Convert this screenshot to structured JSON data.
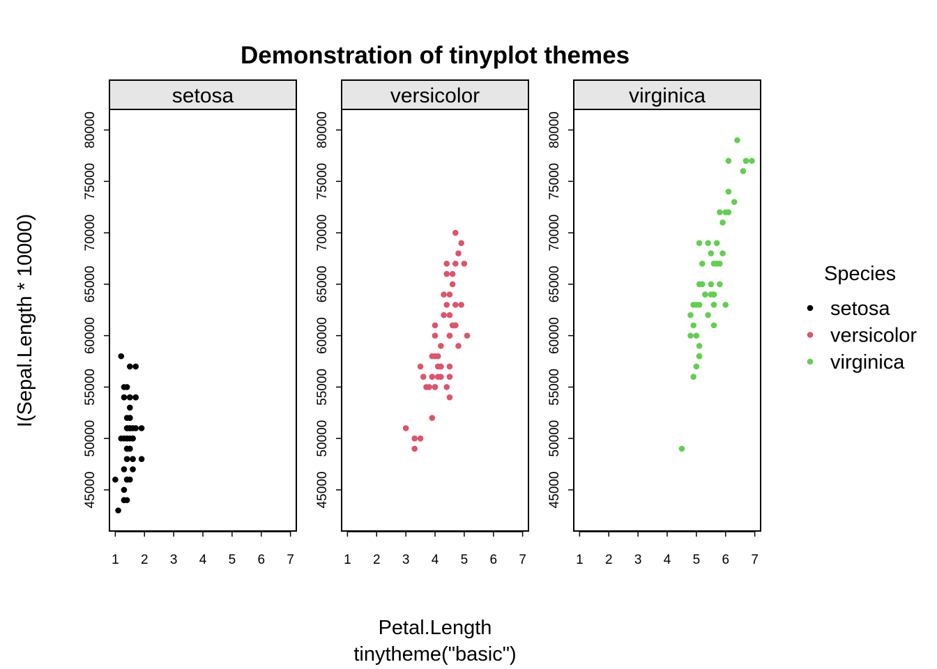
{
  "chart_data": {
    "type": "scatter",
    "title": "Demonstration of tinyplot themes",
    "xlabel": "Petal.Length",
    "sublabel": "tinytheme(\"basic\")",
    "ylabel": "I(Sepal.Length * 10000)",
    "xlim": [
      0.8,
      7.2
    ],
    "ylim": [
      41000,
      82000
    ],
    "x_ticks": [
      "1",
      "2",
      "3",
      "4",
      "5",
      "6",
      "7"
    ],
    "y_ticks": [
      "45000",
      "50000",
      "55000",
      "60000",
      "65000",
      "70000",
      "75000",
      "80000"
    ],
    "legend": {
      "title": "Species",
      "placement": "right"
    },
    "series": [
      {
        "name": "setosa",
        "color": "#000000",
        "points": [
          [
            1.4,
            51000
          ],
          [
            1.4,
            49000
          ],
          [
            1.3,
            47000
          ],
          [
            1.5,
            46000
          ],
          [
            1.4,
            50000
          ],
          [
            1.7,
            54000
          ],
          [
            1.4,
            46000
          ],
          [
            1.5,
            50000
          ],
          [
            1.4,
            44000
          ],
          [
            1.5,
            49000
          ],
          [
            1.5,
            54000
          ],
          [
            1.6,
            48000
          ],
          [
            1.4,
            48000
          ],
          [
            1.1,
            43000
          ],
          [
            1.2,
            58000
          ],
          [
            1.5,
            57000
          ],
          [
            1.3,
            54000
          ],
          [
            1.4,
            51000
          ],
          [
            1.7,
            57000
          ],
          [
            1.5,
            51000
          ],
          [
            1.7,
            54000
          ],
          [
            1.5,
            51000
          ],
          [
            1.0,
            46000
          ],
          [
            1.7,
            51000
          ],
          [
            1.9,
            48000
          ],
          [
            1.6,
            50000
          ],
          [
            1.6,
            50000
          ],
          [
            1.5,
            52000
          ],
          [
            1.4,
            52000
          ],
          [
            1.6,
            47000
          ],
          [
            1.6,
            48000
          ],
          [
            1.5,
            54000
          ],
          [
            1.5,
            52000
          ],
          [
            1.4,
            55000
          ],
          [
            1.5,
            49000
          ],
          [
            1.2,
            50000
          ],
          [
            1.3,
            55000
          ],
          [
            1.4,
            49000
          ],
          [
            1.3,
            44000
          ],
          [
            1.5,
            51000
          ],
          [
            1.3,
            50000
          ],
          [
            1.3,
            45000
          ],
          [
            1.3,
            44000
          ],
          [
            1.6,
            50000
          ],
          [
            1.9,
            51000
          ],
          [
            1.4,
            48000
          ],
          [
            1.6,
            51000
          ],
          [
            1.4,
            46000
          ],
          [
            1.5,
            53000
          ],
          [
            1.4,
            50000
          ]
        ]
      },
      {
        "name": "versicolor",
        "color": "#DF536B",
        "points": [
          [
            4.7,
            70000
          ],
          [
            4.5,
            64000
          ],
          [
            4.9,
            69000
          ],
          [
            4.0,
            55000
          ],
          [
            4.6,
            65000
          ],
          [
            4.5,
            57000
          ],
          [
            4.7,
            63000
          ],
          [
            3.3,
            49000
          ],
          [
            4.6,
            66000
          ],
          [
            3.9,
            52000
          ],
          [
            3.5,
            50000
          ],
          [
            4.2,
            59000
          ],
          [
            4.0,
            60000
          ],
          [
            4.7,
            61000
          ],
          [
            3.6,
            56000
          ],
          [
            4.4,
            67000
          ],
          [
            4.5,
            56000
          ],
          [
            4.1,
            58000
          ],
          [
            4.5,
            62000
          ],
          [
            3.9,
            56000
          ],
          [
            4.8,
            59000
          ],
          [
            4.0,
            61000
          ],
          [
            4.9,
            63000
          ],
          [
            4.7,
            61000
          ],
          [
            4.3,
            64000
          ],
          [
            4.4,
            66000
          ],
          [
            4.8,
            68000
          ],
          [
            5.0,
            67000
          ],
          [
            4.5,
            60000
          ],
          [
            3.5,
            57000
          ],
          [
            3.8,
            55000
          ],
          [
            3.7,
            55000
          ],
          [
            3.9,
            58000
          ],
          [
            5.1,
            60000
          ],
          [
            4.5,
            54000
          ],
          [
            4.5,
            60000
          ],
          [
            4.7,
            67000
          ],
          [
            4.4,
            63000
          ],
          [
            4.1,
            56000
          ],
          [
            4.0,
            55000
          ],
          [
            4.4,
            55000
          ],
          [
            4.6,
            61000
          ],
          [
            4.0,
            58000
          ],
          [
            3.3,
            50000
          ],
          [
            4.2,
            56000
          ],
          [
            4.2,
            57000
          ],
          [
            4.2,
            57000
          ],
          [
            4.3,
            62000
          ],
          [
            3.0,
            51000
          ],
          [
            4.1,
            57000
          ]
        ]
      },
      {
        "name": "virginica",
        "color": "#61D04F",
        "points": [
          [
            6.0,
            63000
          ],
          [
            5.1,
            58000
          ],
          [
            5.9,
            71000
          ],
          [
            5.6,
            63000
          ],
          [
            5.8,
            65000
          ],
          [
            6.6,
            76000
          ],
          [
            4.5,
            49000
          ],
          [
            6.3,
            73000
          ],
          [
            5.8,
            67000
          ],
          [
            6.1,
            72000
          ],
          [
            5.1,
            65000
          ],
          [
            5.3,
            64000
          ],
          [
            5.5,
            68000
          ],
          [
            5.0,
            57000
          ],
          [
            5.1,
            58000
          ],
          [
            5.3,
            64000
          ],
          [
            5.5,
            65000
          ],
          [
            6.7,
            77000
          ],
          [
            6.9,
            77000
          ],
          [
            5.0,
            60000
          ],
          [
            5.7,
            69000
          ],
          [
            4.9,
            56000
          ],
          [
            6.7,
            77000
          ],
          [
            4.9,
            63000
          ],
          [
            5.7,
            67000
          ],
          [
            6.0,
            72000
          ],
          [
            4.8,
            62000
          ],
          [
            4.9,
            61000
          ],
          [
            5.6,
            64000
          ],
          [
            5.8,
            72000
          ],
          [
            6.1,
            74000
          ],
          [
            6.4,
            79000
          ],
          [
            5.6,
            64000
          ],
          [
            5.1,
            63000
          ],
          [
            5.6,
            61000
          ],
          [
            6.1,
            77000
          ],
          [
            5.6,
            63000
          ],
          [
            5.5,
            64000
          ],
          [
            4.8,
            60000
          ],
          [
            5.4,
            69000
          ],
          [
            5.6,
            67000
          ],
          [
            5.1,
            69000
          ],
          [
            5.1,
            58000
          ],
          [
            5.9,
            68000
          ],
          [
            5.7,
            67000
          ],
          [
            5.2,
            67000
          ],
          [
            5.0,
            63000
          ],
          [
            5.2,
            65000
          ],
          [
            5.4,
            62000
          ],
          [
            5.1,
            59000
          ]
        ]
      }
    ]
  }
}
